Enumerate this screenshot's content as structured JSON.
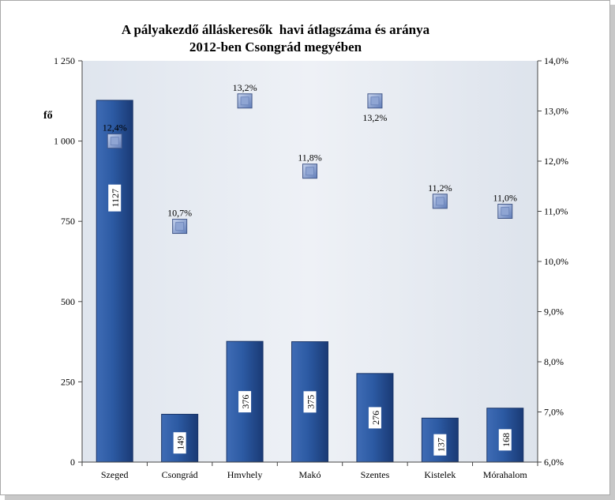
{
  "chart_data": {
    "type": "bar+scatter",
    "title_line1": "A pályakezdő álláskeresők  havi átlagszáma és aránya",
    "title_line2": "2012-ben Csongrád megyében",
    "ylabel": "fő",
    "categories": [
      "Szeged",
      "Csongrád",
      "Hmvhely",
      "Makó",
      "Szentes",
      "Kistelek",
      "Mórahalom"
    ],
    "bar_values": [
      1127,
      149,
      376,
      375,
      276,
      137,
      168
    ],
    "bar_labels": [
      "1127",
      "149",
      "376",
      "375",
      "276",
      "137",
      "168"
    ],
    "percent_values": [
      12.4,
      10.7,
      13.2,
      11.8,
      13.2,
      11.2,
      11.0
    ],
    "percent_labels": [
      "12,4%",
      "10,7%",
      "13,2%",
      "11,8%",
      "13,2%",
      "11,2%",
      "11,0%"
    ],
    "percent_label_position": [
      "above",
      "above",
      "above",
      "above",
      "below",
      "above",
      "above"
    ],
    "ylim_left": [
      0,
      1250
    ],
    "yticks_left": [
      "0",
      "250",
      "500",
      "750",
      "1 000",
      "1 250"
    ],
    "ylim_right": [
      6.0,
      14.0
    ],
    "yticks_right": [
      "6,0%",
      "7,0%",
      "8,0%",
      "9,0%",
      "10,0%",
      "11,0%",
      "12,0%",
      "13,0%",
      "14,0%"
    ],
    "grid": false,
    "colors": {
      "bar": "#2e5aa0",
      "bar_dark": "#1c3c78",
      "marker": "#7a93c9",
      "plot_bg": "#e3e8f0"
    }
  }
}
